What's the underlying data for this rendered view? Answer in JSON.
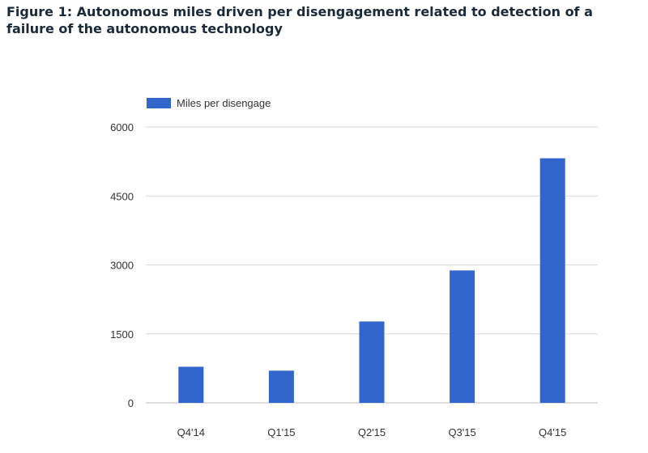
{
  "figure": {
    "title": "Figure 1: Autonomous miles driven per disengagement related to detection of a failure of the autonomous technology"
  },
  "colors": {
    "bar": "#3366cc",
    "grid": "#d9d9d9",
    "axis_text": "#333333"
  },
  "chart_data": {
    "type": "bar",
    "title": "",
    "xlabel": "",
    "ylabel": "",
    "categories": [
      "Q4'14",
      "Q1'15",
      "Q2'15",
      "Q3'15",
      "Q4'15"
    ],
    "series": [
      {
        "name": "Miles per disengage",
        "values": [
          785,
          700,
          1770,
          2880,
          5320
        ]
      }
    ],
    "ylim": [
      0,
      6000
    ],
    "yticks": [
      0,
      1500,
      3000,
      4500,
      6000
    ],
    "grid": true,
    "legend": "top-left"
  }
}
